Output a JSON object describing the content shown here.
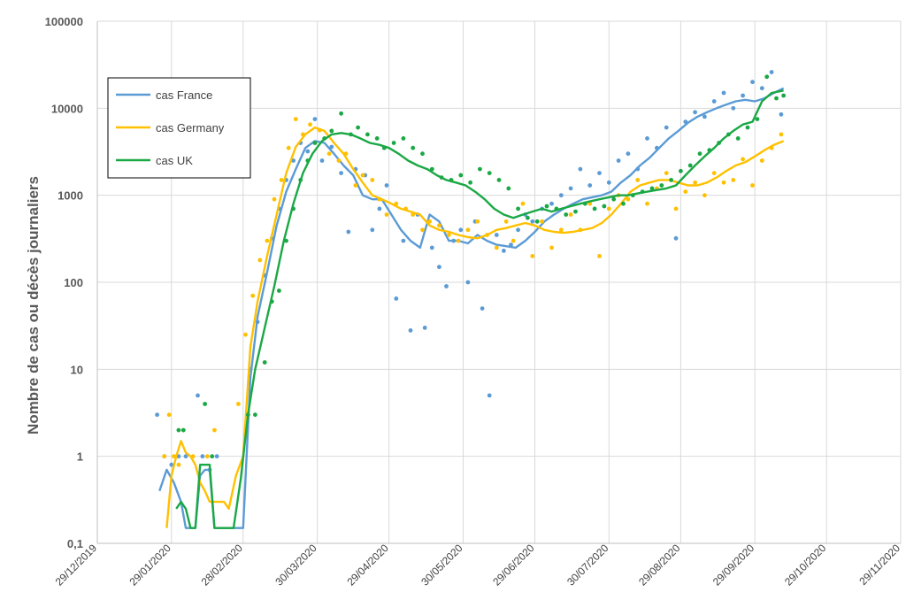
{
  "chart_data": {
    "type": "line",
    "title": "",
    "xlabel": "",
    "ylabel": "Nombre de cas ou décès journaliers",
    "y_scale": "log",
    "ylim": [
      0.1,
      100000
    ],
    "xlim": [
      "2019-12-29",
      "2020-11-29"
    ],
    "grid": true,
    "legend_position": "top-left",
    "y_ticks": [
      "0,1",
      "1",
      "10",
      "100",
      "1000",
      "10000",
      "100000"
    ],
    "x_ticks": [
      "29/12/2019",
      "29/01/2020",
      "28/02/2020",
      "30/03/2020",
      "29/04/2020",
      "30/05/2020",
      "29/06/2020",
      "30/07/2020",
      "29/08/2020",
      "29/09/2020",
      "29/10/2020",
      "29/11/2020"
    ],
    "series": [
      {
        "name": "cas France",
        "color": "#5b9bd5",
        "line_x": [
          "2020-01-24",
          "2020-01-27",
          "2020-01-30",
          "2020-02-02",
          "2020-02-04",
          "2020-02-06",
          "2020-02-08",
          "2020-02-10",
          "2020-02-12",
          "2020-02-14",
          "2020-02-16",
          "2020-02-18",
          "2020-02-20",
          "2020-02-22",
          "2020-02-24",
          "2020-02-26",
          "2020-02-28",
          "2020-03-02",
          "2020-03-05",
          "2020-03-09",
          "2020-03-13",
          "2020-03-17",
          "2020-03-21",
          "2020-03-25",
          "2020-03-29",
          "2020-04-02",
          "2020-04-06",
          "2020-04-10",
          "2020-04-14",
          "2020-04-18",
          "2020-04-22",
          "2020-04-26",
          "2020-04-30",
          "2020-05-04",
          "2020-05-08",
          "2020-05-12",
          "2020-05-16",
          "2020-05-20",
          "2020-05-24",
          "2020-05-28",
          "2020-06-01",
          "2020-06-05",
          "2020-06-09",
          "2020-06-13",
          "2020-06-17",
          "2020-06-21",
          "2020-06-25",
          "2020-06-29",
          "2020-07-03",
          "2020-07-07",
          "2020-07-11",
          "2020-07-15",
          "2020-07-19",
          "2020-07-23",
          "2020-07-27",
          "2020-07-31",
          "2020-08-04",
          "2020-08-08",
          "2020-08-12",
          "2020-08-16",
          "2020-08-20",
          "2020-08-24",
          "2020-08-28",
          "2020-09-01",
          "2020-09-05",
          "2020-09-09",
          "2020-09-13",
          "2020-09-17",
          "2020-09-21",
          "2020-09-25",
          "2020-09-29",
          "2020-10-03",
          "2020-10-07",
          "2020-10-11"
        ],
        "line_y": [
          0.4,
          0.7,
          0.5,
          0.3,
          0.15,
          0.15,
          0.15,
          0.6,
          0.7,
          0.7,
          0.15,
          0.15,
          0.15,
          0.15,
          0.15,
          0.15,
          0.15,
          8,
          40,
          130,
          450,
          1100,
          2000,
          3500,
          4200,
          4000,
          3000,
          2200,
          1700,
          1000,
          900,
          900,
          600,
          400,
          300,
          250,
          600,
          500,
          300,
          300,
          280,
          350,
          300,
          270,
          260,
          250,
          300,
          380,
          500,
          600,
          700,
          800,
          900,
          950,
          1000,
          1100,
          1400,
          1700,
          2200,
          2700,
          3500,
          4500,
          5500,
          6800,
          8000,
          9000,
          10000,
          11000,
          12000,
          12500,
          12000,
          13000,
          15000,
          17000
        ],
        "dots_x": [
          "2020-01-23",
          "2020-01-26",
          "2020-01-29",
          "2020-02-01",
          "2020-02-04",
          "2020-02-09",
          "2020-02-11",
          "2020-02-14",
          "2020-02-17",
          "2020-03-02",
          "2020-03-05",
          "2020-03-08",
          "2020-03-11",
          "2020-03-14",
          "2020-03-17",
          "2020-03-20",
          "2020-03-23",
          "2020-03-26",
          "2020-03-29",
          "2020-04-01",
          "2020-04-05",
          "2020-04-09",
          "2020-04-12",
          "2020-04-15",
          "2020-04-19",
          "2020-04-22",
          "2020-04-25",
          "2020-04-28",
          "2020-05-02",
          "2020-05-05",
          "2020-05-08",
          "2020-05-11",
          "2020-05-14",
          "2020-05-17",
          "2020-05-20",
          "2020-05-23",
          "2020-05-26",
          "2020-05-29",
          "2020-06-01",
          "2020-06-04",
          "2020-06-07",
          "2020-06-10",
          "2020-06-13",
          "2020-06-16",
          "2020-06-19",
          "2020-06-22",
          "2020-06-25",
          "2020-06-28",
          "2020-07-02",
          "2020-07-06",
          "2020-07-10",
          "2020-07-14",
          "2020-07-18",
          "2020-07-22",
          "2020-07-26",
          "2020-07-30",
          "2020-08-03",
          "2020-08-07",
          "2020-08-11",
          "2020-08-15",
          "2020-08-19",
          "2020-08-23",
          "2020-08-27",
          "2020-08-31",
          "2020-09-04",
          "2020-09-08",
          "2020-09-12",
          "2020-09-16",
          "2020-09-20",
          "2020-09-24",
          "2020-09-28",
          "2020-10-02",
          "2020-10-06",
          "2020-10-10"
        ],
        "dots_y": [
          3,
          1,
          0.8,
          1,
          1,
          5,
          1,
          0.7,
          1,
          10,
          35,
          120,
          320,
          700,
          1500,
          2500,
          4000,
          3200,
          7500,
          2500,
          3600,
          1800,
          380,
          2000,
          1700,
          400,
          700,
          1300,
          65,
          300,
          28,
          600,
          30,
          250,
          150,
          90,
          300,
          400,
          100,
          500,
          50,
          5,
          350,
          230,
          270,
          400,
          600,
          500,
          700,
          800,
          1000,
          1200,
          2000,
          1300,
          1800,
          1400,
          2500,
          3000,
          2000,
          4500,
          3500,
          6000,
          320,
          7000,
          9000,
          8000,
          12000,
          15000,
          10000,
          14000,
          20000,
          17000,
          26000,
          8500
        ]
      },
      {
        "name": "cas Germany",
        "color": "#ffc000",
        "line_x": [
          "2020-01-27",
          "2020-01-29",
          "2020-01-31",
          "2020-02-02",
          "2020-02-04",
          "2020-02-06",
          "2020-02-08",
          "2020-02-10",
          "2020-02-12",
          "2020-02-14",
          "2020-02-16",
          "2020-02-18",
          "2020-02-20",
          "2020-02-22",
          "2020-02-25",
          "2020-02-28",
          "2020-03-02",
          "2020-03-05",
          "2020-03-09",
          "2020-03-13",
          "2020-03-17",
          "2020-03-21",
          "2020-03-25",
          "2020-03-29",
          "2020-04-02",
          "2020-04-06",
          "2020-04-10",
          "2020-04-14",
          "2020-04-18",
          "2020-04-22",
          "2020-04-26",
          "2020-04-30",
          "2020-05-04",
          "2020-05-08",
          "2020-05-12",
          "2020-05-16",
          "2020-05-20",
          "2020-05-24",
          "2020-05-28",
          "2020-06-01",
          "2020-06-05",
          "2020-06-09",
          "2020-06-13",
          "2020-06-17",
          "2020-06-21",
          "2020-06-25",
          "2020-06-29",
          "2020-07-03",
          "2020-07-07",
          "2020-07-11",
          "2020-07-15",
          "2020-07-19",
          "2020-07-23",
          "2020-07-27",
          "2020-07-31",
          "2020-08-04",
          "2020-08-08",
          "2020-08-12",
          "2020-08-16",
          "2020-08-20",
          "2020-08-24",
          "2020-08-28",
          "2020-09-01",
          "2020-09-05",
          "2020-09-09",
          "2020-09-13",
          "2020-09-17",
          "2020-09-21",
          "2020-09-25",
          "2020-09-29",
          "2020-10-03",
          "2020-10-07",
          "2020-10-11"
        ],
        "line_y": [
          0.15,
          0.6,
          1,
          1.5,
          1.1,
          1,
          0.8,
          0.5,
          0.4,
          0.3,
          0.3,
          0.3,
          0.3,
          0.25,
          0.6,
          1,
          18,
          60,
          200,
          600,
          1800,
          3600,
          5000,
          6000,
          5500,
          4000,
          3000,
          2000,
          1400,
          1000,
          900,
          800,
          700,
          650,
          600,
          450,
          400,
          380,
          350,
          330,
          320,
          350,
          400,
          420,
          450,
          480,
          450,
          400,
          380,
          370,
          380,
          400,
          420,
          480,
          600,
          800,
          1100,
          1300,
          1400,
          1500,
          1500,
          1400,
          1300,
          1300,
          1400,
          1600,
          1900,
          2200,
          2400,
          2800,
          3300,
          3800,
          4200
        ],
        "dots_x": [
          "2020-01-26",
          "2020-01-28",
          "2020-01-30",
          "2020-02-01",
          "2020-02-03",
          "2020-02-07",
          "2020-02-13",
          "2020-02-16",
          "2020-02-26",
          "2020-02-29",
          "2020-03-03",
          "2020-03-06",
          "2020-03-09",
          "2020-03-12",
          "2020-03-15",
          "2020-03-18",
          "2020-03-21",
          "2020-03-24",
          "2020-03-27",
          "2020-03-31",
          "2020-04-04",
          "2020-04-08",
          "2020-04-11",
          "2020-04-15",
          "2020-04-18",
          "2020-04-22",
          "2020-04-25",
          "2020-04-28",
          "2020-05-02",
          "2020-05-06",
          "2020-05-09",
          "2020-05-13",
          "2020-05-16",
          "2020-05-20",
          "2020-05-24",
          "2020-05-28",
          "2020-06-01",
          "2020-06-05",
          "2020-06-09",
          "2020-06-13",
          "2020-06-17",
          "2020-06-20",
          "2020-06-24",
          "2020-06-28",
          "2020-07-02",
          "2020-07-06",
          "2020-07-10",
          "2020-07-14",
          "2020-07-18",
          "2020-07-22",
          "2020-07-26",
          "2020-07-30",
          "2020-08-03",
          "2020-08-07",
          "2020-08-11",
          "2020-08-15",
          "2020-08-19",
          "2020-08-23",
          "2020-08-27",
          "2020-08-31",
          "2020-09-04",
          "2020-09-08",
          "2020-09-12",
          "2020-09-16",
          "2020-09-20",
          "2020-09-24",
          "2020-09-28",
          "2020-10-02",
          "2020-10-06",
          "2020-10-10"
        ],
        "dots_y": [
          1,
          3,
          1,
          0.8,
          2,
          1,
          1,
          2,
          4,
          25,
          70,
          180,
          300,
          900,
          1500,
          3500,
          7500,
          5000,
          6500,
          5600,
          3000,
          2500,
          3000,
          1300,
          1700,
          1500,
          900,
          600,
          800,
          700,
          600,
          400,
          500,
          450,
          350,
          300,
          400,
          500,
          350,
          250,
          500,
          300,
          800,
          200,
          500,
          250,
          400,
          600,
          400,
          800,
          200,
          700,
          1000,
          900,
          1500,
          800,
          1200,
          1800,
          700,
          1100,
          1400,
          1000,
          1800,
          1400,
          1500,
          2600,
          1300,
          2500,
          3500,
          5000
        ]
      },
      {
        "name": "cas UK",
        "color": "#1aa845",
        "line_x": [
          "2020-01-31",
          "2020-02-02",
          "2020-02-04",
          "2020-02-06",
          "2020-02-08",
          "2020-02-10",
          "2020-02-12",
          "2020-02-14",
          "2020-02-16",
          "2020-02-18",
          "2020-02-20",
          "2020-02-22",
          "2020-02-24",
          "2020-02-27",
          "2020-03-01",
          "2020-03-04",
          "2020-03-08",
          "2020-03-12",
          "2020-03-16",
          "2020-03-20",
          "2020-03-24",
          "2020-03-28",
          "2020-04-01",
          "2020-04-05",
          "2020-04-09",
          "2020-04-13",
          "2020-04-17",
          "2020-04-21",
          "2020-04-25",
          "2020-04-29",
          "2020-05-03",
          "2020-05-07",
          "2020-05-11",
          "2020-05-15",
          "2020-05-19",
          "2020-05-23",
          "2020-05-27",
          "2020-05-31",
          "2020-06-04",
          "2020-06-08",
          "2020-06-12",
          "2020-06-16",
          "2020-06-20",
          "2020-06-24",
          "2020-06-28",
          "2020-07-02",
          "2020-07-06",
          "2020-07-10",
          "2020-07-14",
          "2020-07-18",
          "2020-07-22",
          "2020-07-26",
          "2020-07-30",
          "2020-08-03",
          "2020-08-07",
          "2020-08-11",
          "2020-08-15",
          "2020-08-19",
          "2020-08-23",
          "2020-08-27",
          "2020-08-31",
          "2020-09-04",
          "2020-09-08",
          "2020-09-12",
          "2020-09-16",
          "2020-09-20",
          "2020-09-24",
          "2020-09-28",
          "2020-10-02",
          "2020-10-06",
          "2020-10-11"
        ],
        "line_y": [
          0.25,
          0.3,
          0.25,
          0.15,
          0.15,
          0.8,
          0.8,
          0.8,
          0.15,
          0.15,
          0.15,
          0.15,
          0.15,
          0.55,
          3,
          10,
          30,
          90,
          300,
          800,
          1800,
          3000,
          4200,
          5000,
          5200,
          5000,
          4500,
          4000,
          3800,
          3500,
          3000,
          2500,
          2200,
          2000,
          1700,
          1500,
          1400,
          1300,
          1100,
          900,
          700,
          600,
          550,
          600,
          650,
          700,
          650,
          700,
          750,
          800,
          850,
          900,
          950,
          1000,
          1000,
          1050,
          1100,
          1150,
          1200,
          1300,
          1700,
          2200,
          2800,
          3500,
          4500,
          5500,
          6500,
          7000,
          12000,
          15000,
          16000
        ],
        "dots_x": [
          "2020-02-01",
          "2020-02-03",
          "2020-02-12",
          "2020-02-15",
          "2020-03-01",
          "2020-03-04",
          "2020-03-08",
          "2020-03-11",
          "2020-03-14",
          "2020-03-17",
          "2020-03-20",
          "2020-03-23",
          "2020-03-26",
          "2020-03-29",
          "2020-04-02",
          "2020-04-05",
          "2020-04-09",
          "2020-04-13",
          "2020-04-16",
          "2020-04-20",
          "2020-04-24",
          "2020-04-27",
          "2020-05-01",
          "2020-05-05",
          "2020-05-09",
          "2020-05-13",
          "2020-05-17",
          "2020-05-21",
          "2020-05-25",
          "2020-05-29",
          "2020-06-02",
          "2020-06-06",
          "2020-06-10",
          "2020-06-14",
          "2020-06-18",
          "2020-06-22",
          "2020-06-26",
          "2020-06-30",
          "2020-07-04",
          "2020-07-08",
          "2020-07-12",
          "2020-07-16",
          "2020-07-20",
          "2020-07-24",
          "2020-07-28",
          "2020-08-01",
          "2020-08-05",
          "2020-08-09",
          "2020-08-13",
          "2020-08-17",
          "2020-08-21",
          "2020-08-25",
          "2020-08-29",
          "2020-09-02",
          "2020-09-06",
          "2020-09-10",
          "2020-09-14",
          "2020-09-18",
          "2020-09-22",
          "2020-09-26",
          "2020-09-30",
          "2020-10-04",
          "2020-10-08",
          "2020-10-11"
        ],
        "dots_y": [
          2,
          2,
          4,
          1,
          3,
          3,
          12,
          60,
          80,
          300,
          700,
          1500,
          2500,
          4000,
          4500,
          5500,
          8700,
          5000,
          6000,
          5000,
          4500,
          3500,
          4000,
          4500,
          3500,
          3000,
          2000,
          1600,
          1500,
          1700,
          1400,
          2000,
          1800,
          1500,
          1200,
          700,
          550,
          500,
          750,
          700,
          600,
          650,
          800,
          700,
          750,
          900,
          800,
          1000,
          1100,
          1200,
          1300,
          1500,
          1900,
          2200,
          3000,
          3300,
          4000,
          5000,
          4500,
          6000,
          7500,
          23000,
          13000,
          14000
        ]
      }
    ]
  }
}
